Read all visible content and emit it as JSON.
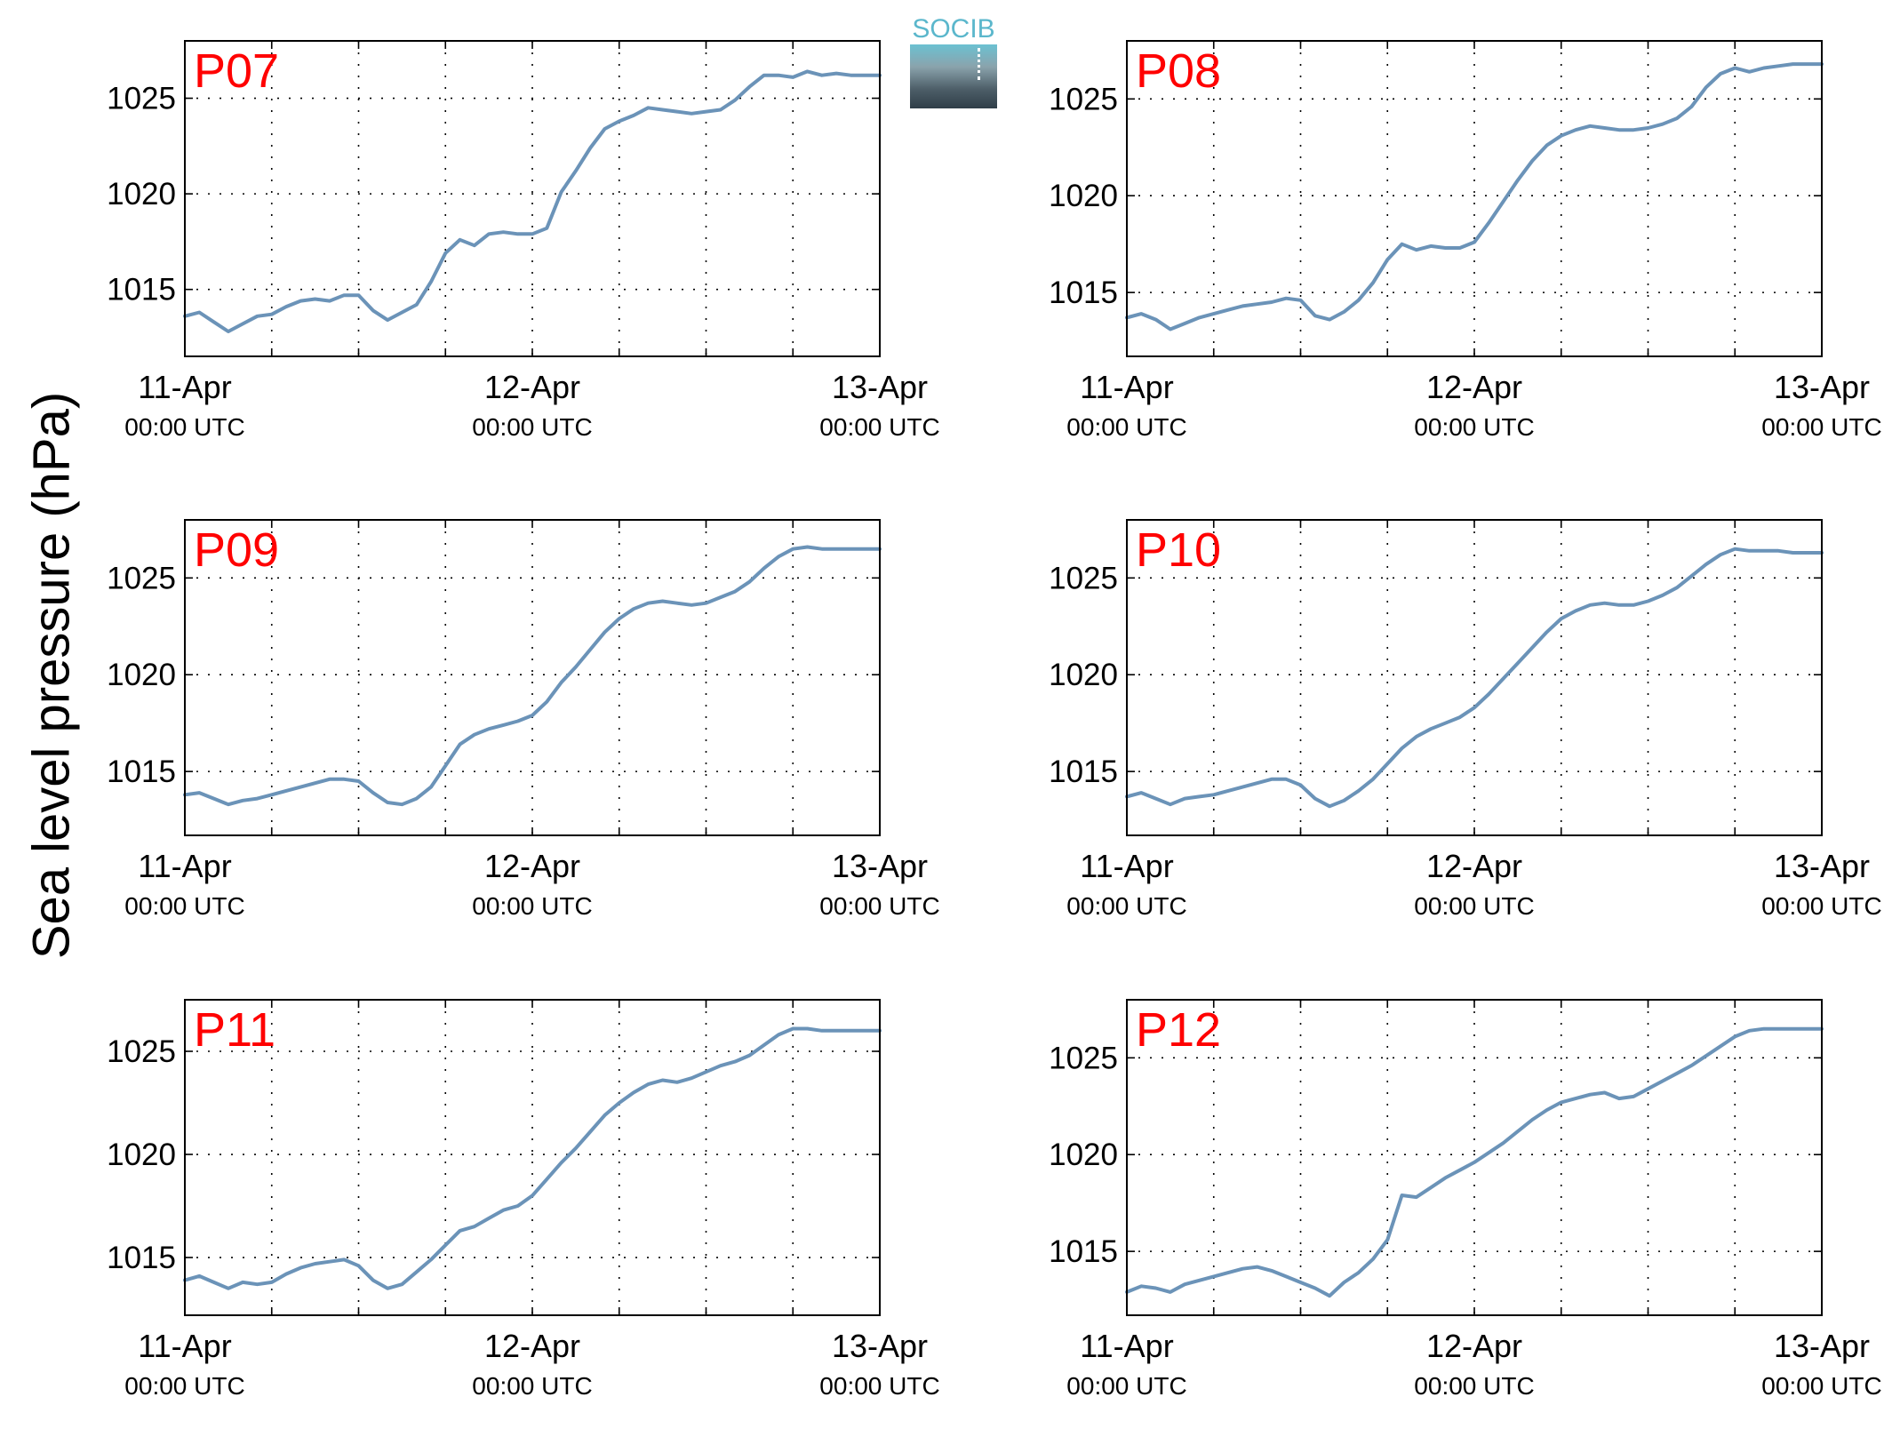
{
  "figure": {
    "ylabel": "Sea level pressure (hPa)",
    "logo_text": "SOCIB",
    "colors": {
      "line": "#6b93b8",
      "panel_label": "#ff0000",
      "axis": "#000000",
      "grid": "#000000"
    }
  },
  "chart_data": [
    {
      "type": "line",
      "title": "P07",
      "x_ticks": [
        {
          "date": "11-Apr",
          "time": "00:00 UTC"
        },
        {
          "date": "12-Apr",
          "time": "00:00 UTC"
        },
        {
          "date": "13-Apr",
          "time": "00:00 UTC"
        }
      ],
      "xlim_hours": [
        0,
        48
      ],
      "ylim": [
        1011.5,
        1028
      ],
      "yticks": [
        1015,
        1020,
        1025
      ],
      "grid": true,
      "series": [
        {
          "x_hours": [
            0,
            1,
            2,
            3,
            4,
            5,
            6,
            7,
            8,
            9,
            10,
            11,
            12,
            13,
            14,
            15,
            16,
            17,
            18,
            19,
            20,
            21,
            22,
            23,
            24,
            25,
            26,
            27,
            28,
            29,
            30,
            31,
            32,
            33,
            34,
            35,
            36,
            37,
            38,
            39,
            40,
            41,
            42,
            43,
            44,
            45,
            46,
            47,
            48
          ],
          "values": [
            1013.6,
            1013.8,
            1013.3,
            1012.8,
            1013.2,
            1013.6,
            1013.7,
            1014.1,
            1014.4,
            1014.5,
            1014.4,
            1014.7,
            1014.7,
            1013.9,
            1013.4,
            1013.8,
            1014.2,
            1015.4,
            1016.9,
            1017.6,
            1017.3,
            1017.9,
            1018.0,
            1017.9,
            1017.9,
            1018.2,
            1020.1,
            1021.2,
            1022.4,
            1023.4,
            1023.8,
            1024.1,
            1024.5,
            1024.4,
            1024.3,
            1024.2,
            1024.3,
            1024.4,
            1024.9,
            1025.6,
            1026.2,
            1026.2,
            1026.1,
            1026.4,
            1026.2,
            1026.3,
            1026.2,
            1026.2,
            1026.2
          ]
        }
      ]
    },
    {
      "type": "line",
      "title": "P08",
      "x_ticks": [
        {
          "date": "11-Apr",
          "time": "00:00 UTC"
        },
        {
          "date": "12-Apr",
          "time": "00:00 UTC"
        },
        {
          "date": "13-Apr",
          "time": "00:00 UTC"
        }
      ],
      "xlim_hours": [
        0,
        48
      ],
      "ylim": [
        1011.7,
        1028
      ],
      "yticks": [
        1015,
        1020,
        1025
      ],
      "grid": true,
      "series": [
        {
          "x_hours": [
            0,
            1,
            2,
            3,
            4,
            5,
            6,
            7,
            8,
            9,
            10,
            11,
            12,
            13,
            14,
            15,
            16,
            17,
            18,
            19,
            20,
            21,
            22,
            23,
            24,
            25,
            26,
            27,
            28,
            29,
            30,
            31,
            32,
            33,
            34,
            35,
            36,
            37,
            38,
            39,
            40,
            41,
            42,
            43,
            44,
            45,
            46,
            47,
            48
          ],
          "values": [
            1013.7,
            1013.9,
            1013.6,
            1013.1,
            1013.4,
            1013.7,
            1013.9,
            1014.1,
            1014.3,
            1014.4,
            1014.5,
            1014.7,
            1014.6,
            1013.8,
            1013.6,
            1014.0,
            1014.6,
            1015.5,
            1016.7,
            1017.5,
            1017.2,
            1017.4,
            1017.3,
            1017.3,
            1017.6,
            1018.6,
            1019.7,
            1020.8,
            1021.8,
            1022.6,
            1023.1,
            1023.4,
            1023.6,
            1023.5,
            1023.4,
            1023.4,
            1023.5,
            1023.7,
            1024.0,
            1024.6,
            1025.6,
            1026.3,
            1026.6,
            1026.4,
            1026.6,
            1026.7,
            1026.8,
            1026.8,
            1026.8
          ]
        }
      ]
    },
    {
      "type": "line",
      "title": "P09",
      "x_ticks": [
        {
          "date": "11-Apr",
          "time": "00:00 UTC"
        },
        {
          "date": "12-Apr",
          "time": "00:00 UTC"
        },
        {
          "date": "13-Apr",
          "time": "00:00 UTC"
        }
      ],
      "xlim_hours": [
        0,
        48
      ],
      "ylim": [
        1011.7,
        1028
      ],
      "yticks": [
        1015,
        1020,
        1025
      ],
      "grid": true,
      "series": [
        {
          "x_hours": [
            0,
            1,
            2,
            3,
            4,
            5,
            6,
            7,
            8,
            9,
            10,
            11,
            12,
            13,
            14,
            15,
            16,
            17,
            18,
            19,
            20,
            21,
            22,
            23,
            24,
            25,
            26,
            27,
            28,
            29,
            30,
            31,
            32,
            33,
            34,
            35,
            36,
            37,
            38,
            39,
            40,
            41,
            42,
            43,
            44,
            45,
            46,
            47,
            48
          ],
          "values": [
            1013.8,
            1013.9,
            1013.6,
            1013.3,
            1013.5,
            1013.6,
            1013.8,
            1014.0,
            1014.2,
            1014.4,
            1014.6,
            1014.6,
            1014.5,
            1013.9,
            1013.4,
            1013.3,
            1013.6,
            1014.2,
            1015.3,
            1016.4,
            1016.9,
            1017.2,
            1017.4,
            1017.6,
            1017.9,
            1018.6,
            1019.6,
            1020.4,
            1021.3,
            1022.2,
            1022.9,
            1023.4,
            1023.7,
            1023.8,
            1023.7,
            1023.6,
            1023.7,
            1024.0,
            1024.3,
            1024.8,
            1025.5,
            1026.1,
            1026.5,
            1026.6,
            1026.5,
            1026.5,
            1026.5,
            1026.5,
            1026.5
          ]
        }
      ]
    },
    {
      "type": "line",
      "title": "P10",
      "x_ticks": [
        {
          "date": "11-Apr",
          "time": "00:00 UTC"
        },
        {
          "date": "12-Apr",
          "time": "00:00 UTC"
        },
        {
          "date": "13-Apr",
          "time": "00:00 UTC"
        }
      ],
      "xlim_hours": [
        0,
        48
      ],
      "ylim": [
        1011.7,
        1028
      ],
      "yticks": [
        1015,
        1020,
        1025
      ],
      "grid": true,
      "series": [
        {
          "x_hours": [
            0,
            1,
            2,
            3,
            4,
            5,
            6,
            7,
            8,
            9,
            10,
            11,
            12,
            13,
            14,
            15,
            16,
            17,
            18,
            19,
            20,
            21,
            22,
            23,
            24,
            25,
            26,
            27,
            28,
            29,
            30,
            31,
            32,
            33,
            34,
            35,
            36,
            37,
            38,
            39,
            40,
            41,
            42,
            43,
            44,
            45,
            46,
            47,
            48
          ],
          "values": [
            1013.7,
            1013.9,
            1013.6,
            1013.3,
            1013.6,
            1013.7,
            1013.8,
            1014.0,
            1014.2,
            1014.4,
            1014.6,
            1014.6,
            1014.3,
            1013.6,
            1013.2,
            1013.5,
            1014.0,
            1014.6,
            1015.4,
            1016.2,
            1016.8,
            1017.2,
            1017.5,
            1017.8,
            1018.3,
            1019.0,
            1019.8,
            1020.6,
            1021.4,
            1022.2,
            1022.9,
            1023.3,
            1023.6,
            1023.7,
            1023.6,
            1023.6,
            1023.8,
            1024.1,
            1024.5,
            1025.1,
            1025.7,
            1026.2,
            1026.5,
            1026.4,
            1026.4,
            1026.4,
            1026.3,
            1026.3,
            1026.3
          ]
        }
      ]
    },
    {
      "type": "line",
      "title": "P11",
      "x_ticks": [
        {
          "date": "11-Apr",
          "time": "00:00 UTC"
        },
        {
          "date": "12-Apr",
          "time": "00:00 UTC"
        },
        {
          "date": "13-Apr",
          "time": "00:00 UTC"
        }
      ],
      "xlim_hours": [
        0,
        48
      ],
      "ylim": [
        1012.2,
        1027.5
      ],
      "yticks": [
        1015,
        1020,
        1025
      ],
      "grid": true,
      "series": [
        {
          "x_hours": [
            0,
            1,
            2,
            3,
            4,
            5,
            6,
            7,
            8,
            9,
            10,
            11,
            12,
            13,
            14,
            15,
            16,
            17,
            18,
            19,
            20,
            21,
            22,
            23,
            24,
            25,
            26,
            27,
            28,
            29,
            30,
            31,
            32,
            33,
            34,
            35,
            36,
            37,
            38,
            39,
            40,
            41,
            42,
            43,
            44,
            45,
            46,
            47,
            48
          ],
          "values": [
            1013.9,
            1014.1,
            1013.8,
            1013.5,
            1013.8,
            1013.7,
            1013.8,
            1014.2,
            1014.5,
            1014.7,
            1014.8,
            1014.9,
            1014.6,
            1013.9,
            1013.5,
            1013.7,
            1014.3,
            1014.9,
            1015.6,
            1016.3,
            1016.5,
            1016.9,
            1017.3,
            1017.5,
            1018.0,
            1018.8,
            1019.6,
            1020.3,
            1021.1,
            1021.9,
            1022.5,
            1023.0,
            1023.4,
            1023.6,
            1023.5,
            1023.7,
            1024.0,
            1024.3,
            1024.5,
            1024.8,
            1025.3,
            1025.8,
            1026.1,
            1026.1,
            1026.0,
            1026.0,
            1026.0,
            1026.0,
            1026.0
          ]
        }
      ]
    },
    {
      "type": "line",
      "title": "P12",
      "x_ticks": [
        {
          "date": "11-Apr",
          "time": "00:00 UTC"
        },
        {
          "date": "12-Apr",
          "time": "00:00 UTC"
        },
        {
          "date": "13-Apr",
          "time": "00:00 UTC"
        }
      ],
      "xlim_hours": [
        0,
        48
      ],
      "ylim": [
        1011.7,
        1028
      ],
      "yticks": [
        1015,
        1020,
        1025
      ],
      "grid": true,
      "series": [
        {
          "x_hours": [
            0,
            1,
            2,
            3,
            4,
            5,
            6,
            7,
            8,
            9,
            10,
            11,
            12,
            13,
            14,
            15,
            16,
            17,
            18,
            19,
            20,
            21,
            22,
            23,
            24,
            25,
            26,
            27,
            28,
            29,
            30,
            31,
            32,
            33,
            34,
            35,
            36,
            37,
            38,
            39,
            40,
            41,
            42,
            43,
            44,
            45,
            46,
            47,
            48
          ],
          "values": [
            1012.9,
            1013.2,
            1013.1,
            1012.9,
            1013.3,
            1013.5,
            1013.7,
            1013.9,
            1014.1,
            1014.2,
            1014.0,
            1013.7,
            1013.4,
            1013.1,
            1012.7,
            1013.4,
            1013.9,
            1014.6,
            1015.6,
            1017.9,
            1017.8,
            1018.3,
            1018.8,
            1019.2,
            1019.6,
            1020.1,
            1020.6,
            1021.2,
            1021.8,
            1022.3,
            1022.7,
            1022.9,
            1023.1,
            1023.2,
            1022.9,
            1023.0,
            1023.4,
            1023.8,
            1024.2,
            1024.6,
            1025.1,
            1025.6,
            1026.1,
            1026.4,
            1026.5,
            1026.5,
            1026.5,
            1026.5,
            1026.5
          ]
        }
      ]
    }
  ]
}
